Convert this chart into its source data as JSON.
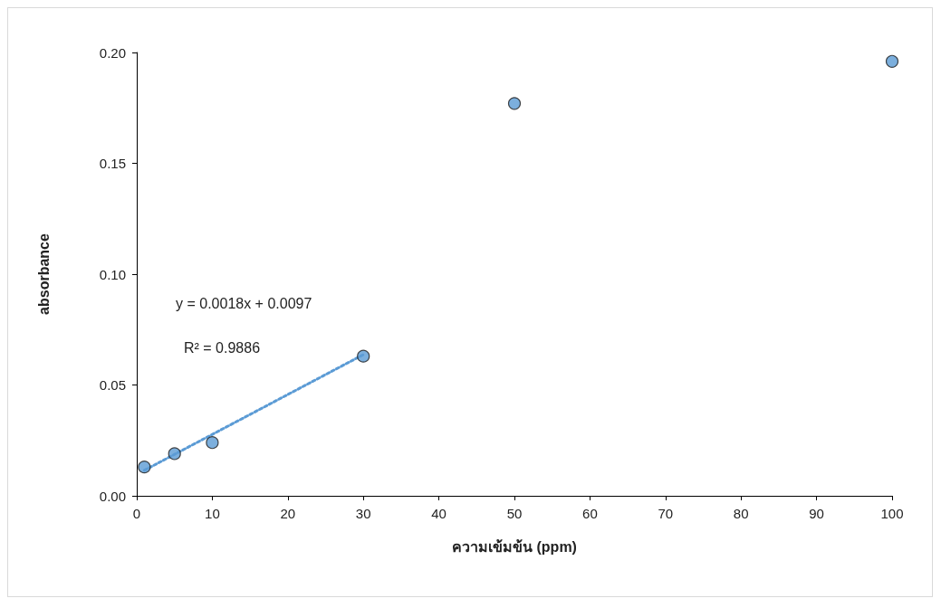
{
  "chart_data": {
    "type": "scatter",
    "xlabel": "ความเข้มข้น (ppm)",
    "ylabel": "absorbance",
    "x": [
      1,
      5,
      10,
      30,
      50,
      100
    ],
    "series": [
      {
        "color": "#5b9bd5",
        "marker": "circle",
        "values": [
          0.013,
          0.019,
          0.024,
          0.063,
          0.177,
          0.196
        ]
      },
      {
        "type": "line",
        "color": "#5b9bd5",
        "marker": "none",
        "line_style": "dotted",
        "x": [
          1,
          30
        ],
        "values": [
          0.0115,
          0.0637
        ]
      }
    ],
    "xlim": [
      0,
      100
    ],
    "xticks": [
      0,
      10,
      20,
      30,
      40,
      50,
      60,
      70,
      80,
      90,
      100
    ],
    "ylim": [
      0,
      0.2
    ],
    "yticks": [
      {
        "value": 0,
        "label": "0.00"
      },
      {
        "value": 0.05,
        "label": "0.05"
      },
      {
        "value": 0.1,
        "label": "0.10"
      },
      {
        "value": 0.15,
        "label": "0.15"
      },
      {
        "value": 0.2,
        "label": "0.20"
      }
    ],
    "annotations": [
      "y = 0.0018x + 0.0097",
      "R² = 0.9886"
    ],
    "grid": false
  }
}
